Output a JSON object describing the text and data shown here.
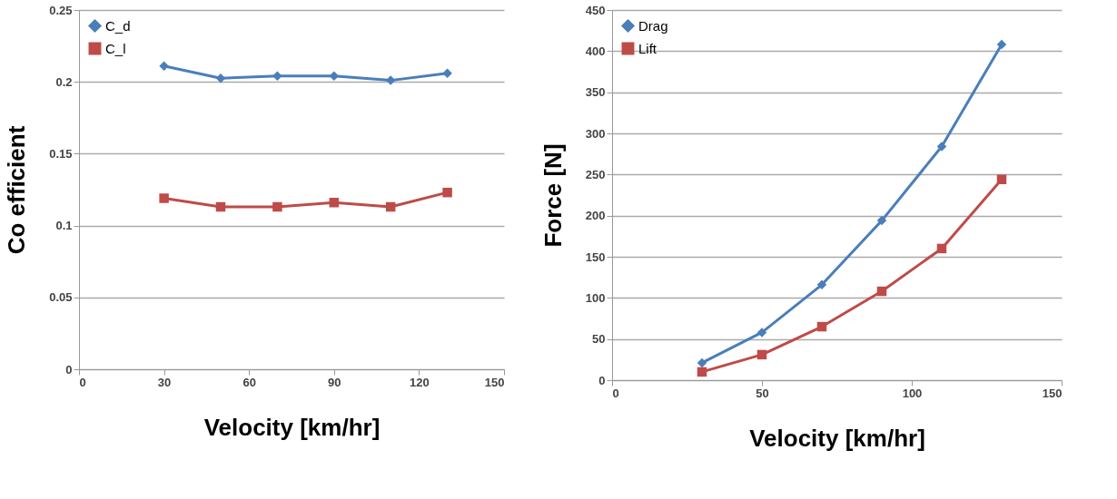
{
  "chart_data": [
    {
      "type": "line",
      "xlabel": "Velocity [km/hr]",
      "ylabel": "Co efficient",
      "x": [
        30,
        50,
        70,
        90,
        110,
        130
      ],
      "series": [
        {
          "name": "C_d",
          "color": "#4a7ebb",
          "marker": "diamond",
          "values": [
            0.211,
            0.2025,
            0.204,
            0.204,
            0.201,
            0.206
          ]
        },
        {
          "name": "C_l",
          "color": "#be4b48",
          "marker": "square",
          "values": [
            0.119,
            0.113,
            0.113,
            0.116,
            0.113,
            0.123
          ]
        }
      ],
      "xlim": [
        0,
        150
      ],
      "xticks": [
        0,
        30,
        60,
        90,
        120,
        150
      ],
      "ylim": [
        0,
        0.25
      ],
      "yticks": [
        0,
        0.05,
        0.1,
        0.15,
        0.2,
        0.25
      ],
      "grid": "y",
      "legend": "top left",
      "line_style": "solid"
    },
    {
      "type": "line",
      "xlabel": "Velocity [km/hr]",
      "ylabel": "Force [N]",
      "x": [
        30,
        50,
        70,
        90,
        110,
        130
      ],
      "series": [
        {
          "name": "Drag",
          "color": "#4a7ebb",
          "marker": "diamond",
          "values": [
            21,
            58,
            116,
            194,
            284,
            408
          ]
        },
        {
          "name": "Lift",
          "color": "#be4b48",
          "marker": "square",
          "values": [
            10,
            31,
            65,
            108,
            160,
            244
          ]
        }
      ],
      "xlim": [
        0,
        150
      ],
      "xticks": [
        0,
        50,
        100,
        150
      ],
      "ylim": [
        0,
        450
      ],
      "yticks": [
        0,
        50,
        100,
        150,
        200,
        250,
        300,
        350,
        400,
        450
      ],
      "grid": "y",
      "legend": "top left",
      "line_style": "solid"
    }
  ]
}
